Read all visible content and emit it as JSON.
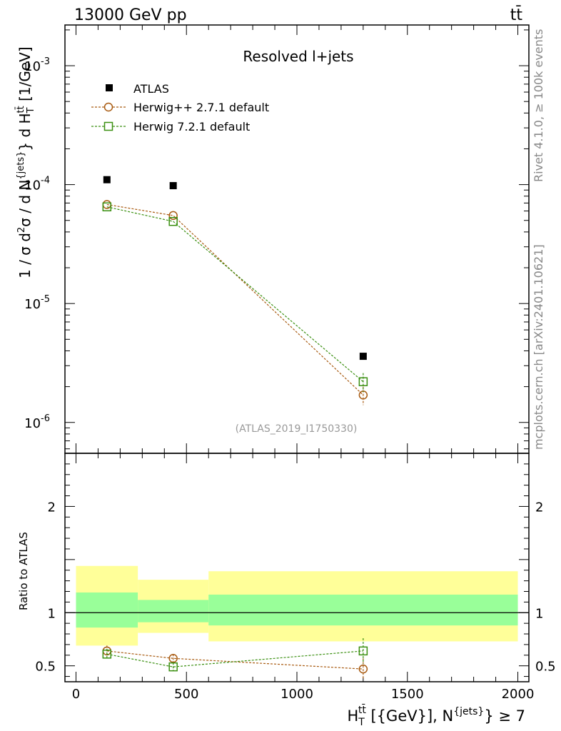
{
  "header": {
    "energy_label": "13000 GeV pp",
    "process_label": "tt̄"
  },
  "side_labels": {
    "rivet": "Rivet 4.1.0, ≥ 100k events",
    "mcplots": "mcplots.cern.ch [arXiv:2401.10621]"
  },
  "chart_data": {
    "type": "scatter",
    "title": "Resolved l+jets",
    "analysis_id": "(ATLAS_2019_I1750330)",
    "ylabel": "1 / σ d²σ / d N^{jets} d H_T^{tt̄} [1/GeV]",
    "ylabel_parts": {
      "a": "1 / σ d",
      "b": "2",
      "c": "σ / d N",
      "d": "{jets}",
      "e": "} d H",
      "f": "T",
      "g": "tt̄",
      "h": " [1/GeV]"
    },
    "xlabel": "H_T^{tt̄} [{GeV}], N^{jets} ≥ 7",
    "xlabel_parts": {
      "a": "H",
      "b": "T",
      "c": "tt̄",
      "d": " [{GeV}], N",
      "e": "{jets}",
      "f": "} ≥ 7"
    },
    "xlim": [
      -50,
      2050
    ],
    "ylim_log": [
      5.5e-07,
      0.0022
    ],
    "x_ticks": [
      "0",
      "500",
      "1000",
      "1500",
      "2000"
    ],
    "x_tick_values": [
      0,
      500,
      1000,
      1500,
      2000
    ],
    "y_ticks": [
      {
        "mant": "10",
        "exp": "-3",
        "value": 0.001
      },
      {
        "mant": "10",
        "exp": "-4",
        "value": 0.0001
      },
      {
        "mant": "10",
        "exp": "-5",
        "value": 1e-05
      },
      {
        "mant": "10",
        "exp": "-6",
        "value": 1e-06
      }
    ],
    "bins": [
      [
        0,
        280
      ],
      [
        280,
        600
      ],
      [
        600,
        2000
      ]
    ],
    "x": [
      140,
      440,
      1300
    ],
    "series": [
      {
        "name": "ATLAS",
        "values": [
          0.00011,
          9.8e-05,
          3.6e-06
        ],
        "color": "#000000",
        "marker": "filled-square"
      },
      {
        "name": "Herwig++ 2.7.1 default",
        "values": [
          6.8e-05,
          5.5e-05,
          1.7e-06
        ],
        "errors": [
          0,
          0,
          3e-07
        ],
        "color": "#a85a10",
        "marker": "open-circle"
      },
      {
        "name": "Herwig 7.2.1 default",
        "values": [
          6.5e-05,
          4.9e-05,
          2.2e-06
        ],
        "errors": [
          0,
          0,
          4e-07
        ],
        "color": "#3a8f10",
        "marker": "open-square"
      }
    ],
    "ratio": {
      "ylabel": "Ratio to ATLAS",
      "ylim": [
        0.35,
        2.5
      ],
      "y_ticks": [
        "0.5",
        "1",
        "2"
      ],
      "y_tick_values": [
        0.5,
        1,
        2
      ],
      "band_outer": [
        [
          0.69,
          1.44
        ],
        [
          0.81,
          1.31
        ],
        [
          0.73,
          1.39
        ]
      ],
      "band_inner": [
        [
          0.86,
          1.19
        ],
        [
          0.91,
          1.12
        ],
        [
          0.88,
          1.17
        ]
      ],
      "series": [
        {
          "name": "Herwig++ 2.7.1 default",
          "values": [
            0.64,
            0.57,
            0.47
          ],
          "errors": [
            0.05,
            0.04,
            0.1
          ]
        },
        {
          "name": "Herwig 7.2.1 default",
          "values": [
            0.61,
            0.49,
            0.64
          ],
          "errors": [
            0.05,
            0.04,
            0.12
          ]
        }
      ],
      "colors": {
        "outer": "#ffff99",
        "inner": "#99ff99"
      }
    }
  }
}
